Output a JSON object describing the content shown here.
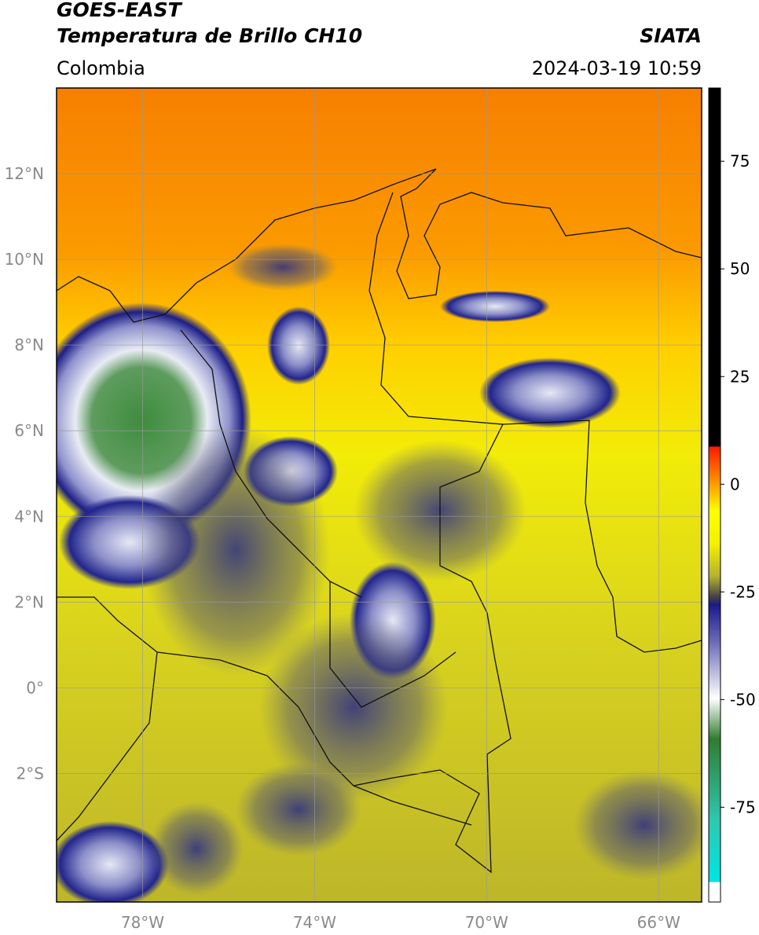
{
  "header": {
    "title": "GOES-EAST",
    "subtitle": "Temperatura de Brillo CH10",
    "region": "Colombia",
    "source": "SIATA",
    "datetime": "2024-03-19 10:59"
  },
  "map": {
    "xlim": [
      -80,
      -65
    ],
    "ylim": [
      -5,
      14
    ],
    "xticks": [
      {
        "value": -78,
        "label": "78°W"
      },
      {
        "value": -74,
        "label": "74°W"
      },
      {
        "value": -70,
        "label": "70°W"
      },
      {
        "value": -66,
        "label": "66°W"
      }
    ],
    "yticks": [
      {
        "value": 12,
        "label": "12°N"
      },
      {
        "value": 10,
        "label": "10°N"
      },
      {
        "value": 8,
        "label": "8°N"
      },
      {
        "value": 6,
        "label": "6°N"
      },
      {
        "value": 4,
        "label": "4°N"
      },
      {
        "value": 2,
        "label": "2°N"
      },
      {
        "value": 0,
        "label": "0°"
      },
      {
        "value": -2,
        "label": "2°S"
      }
    ]
  },
  "colorbar": {
    "lim": [
      -97,
      92
    ],
    "ticks": [
      75,
      50,
      25,
      0,
      -25,
      -50,
      -75
    ]
  }
}
